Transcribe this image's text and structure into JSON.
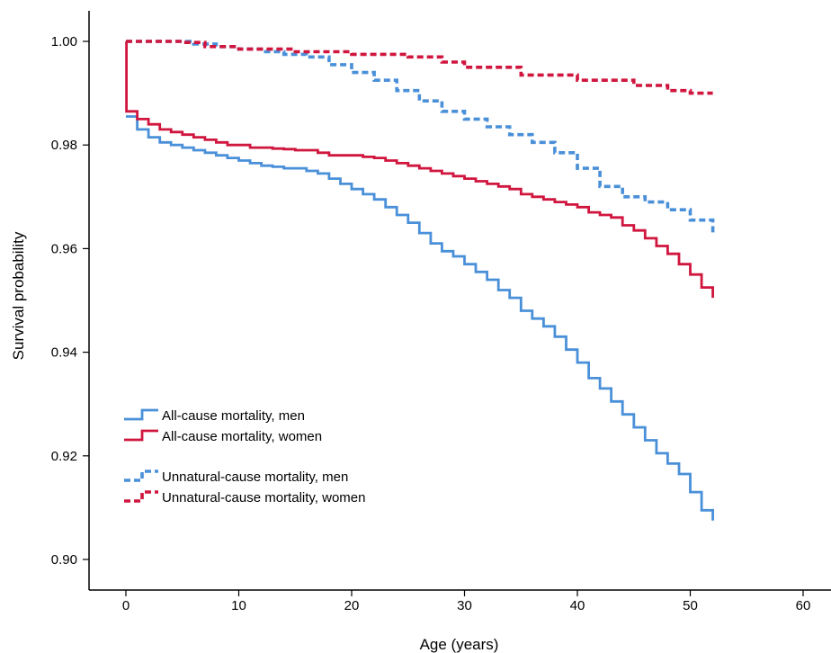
{
  "chart_data": {
    "type": "line",
    "title": "",
    "xlabel": "Age (years)",
    "ylabel": "Survival probability",
    "xlim": [
      -3,
      61
    ],
    "ylim": [
      0.8955,
      1.0055
    ],
    "xticks": [
      0,
      10,
      20,
      30,
      40,
      50,
      60
    ],
    "yticks": [
      0.9,
      0.92,
      0.94,
      0.96,
      0.98,
      1.0
    ],
    "ytick_labels": [
      "0.90",
      "0.92",
      "0.94",
      "0.96",
      "0.98",
      "1.00"
    ],
    "grid": false,
    "legend_position": "lower-left",
    "step": true,
    "series": [
      {
        "name": "All-cause mortality, men",
        "color": "#4a90d9",
        "dash": "solid",
        "x": [
          0,
          1,
          2,
          3,
          4,
          5,
          6,
          7,
          8,
          9,
          10,
          11,
          12,
          13,
          14,
          15,
          16,
          17,
          18,
          19,
          20,
          21,
          22,
          23,
          24,
          25,
          26,
          27,
          28,
          29,
          30,
          31,
          32,
          33,
          34,
          35,
          36,
          37,
          38,
          39,
          40,
          41,
          42,
          43,
          44,
          45,
          46,
          47,
          48,
          49,
          50,
          51,
          52
        ],
        "y": [
          0.9855,
          0.983,
          0.9815,
          0.9805,
          0.98,
          0.9795,
          0.979,
          0.9785,
          0.978,
          0.9775,
          0.977,
          0.9765,
          0.976,
          0.9758,
          0.9755,
          0.9755,
          0.975,
          0.9745,
          0.9735,
          0.9725,
          0.9715,
          0.9705,
          0.9695,
          0.968,
          0.9665,
          0.965,
          0.963,
          0.961,
          0.9595,
          0.9585,
          0.957,
          0.9555,
          0.954,
          0.952,
          0.9505,
          0.948,
          0.9465,
          0.945,
          0.943,
          0.9405,
          0.938,
          0.935,
          0.933,
          0.9305,
          0.928,
          0.9255,
          0.923,
          0.9205,
          0.9185,
          0.9165,
          0.913,
          0.9095,
          0.9075
        ]
      },
      {
        "name": "All-cause mortality, women",
        "color": "#d0163e",
        "dash": "solid",
        "x": [
          0,
          0.05,
          1,
          2,
          3,
          4,
          5,
          6,
          7,
          8,
          9,
          10,
          11,
          12,
          13,
          14,
          15,
          16,
          17,
          18,
          19,
          20,
          21,
          22,
          23,
          24,
          25,
          26,
          27,
          28,
          29,
          30,
          31,
          32,
          33,
          34,
          35,
          36,
          37,
          38,
          39,
          40,
          41,
          42,
          43,
          44,
          45,
          46,
          47,
          48,
          49,
          50,
          51,
          52
        ],
        "y": [
          1.0,
          0.9865,
          0.985,
          0.984,
          0.983,
          0.9825,
          0.982,
          0.9815,
          0.981,
          0.9805,
          0.98,
          0.98,
          0.9795,
          0.9795,
          0.9793,
          0.9792,
          0.979,
          0.979,
          0.9785,
          0.978,
          0.978,
          0.978,
          0.9777,
          0.9775,
          0.977,
          0.9765,
          0.976,
          0.9755,
          0.975,
          0.9745,
          0.974,
          0.9735,
          0.973,
          0.9725,
          0.972,
          0.9715,
          0.9705,
          0.97,
          0.9695,
          0.969,
          0.9685,
          0.968,
          0.967,
          0.9665,
          0.966,
          0.9645,
          0.9635,
          0.962,
          0.9605,
          0.959,
          0.957,
          0.955,
          0.9525,
          0.9505
        ]
      },
      {
        "name": "Unnatural-cause mortality, men",
        "color": "#4a90d9",
        "dash": "dashed",
        "x": [
          0,
          2,
          4,
          5,
          6,
          8,
          10,
          12,
          14,
          16,
          18,
          20,
          22,
          24,
          26,
          28,
          30,
          32,
          34,
          36,
          38,
          40,
          42,
          44,
          46,
          48,
          50,
          52
        ],
        "y": [
          1.0,
          1.0,
          1.0,
          1.0,
          0.9995,
          0.999,
          0.9985,
          0.998,
          0.9975,
          0.997,
          0.9955,
          0.994,
          0.9925,
          0.9905,
          0.9885,
          0.9865,
          0.985,
          0.9835,
          0.982,
          0.9805,
          0.9785,
          0.9755,
          0.972,
          0.97,
          0.969,
          0.9675,
          0.9655,
          0.9625
        ]
      },
      {
        "name": "Unnatural-cause mortality, women",
        "color": "#d0163e",
        "dash": "dashed",
        "x": [
          0,
          5,
          7,
          10,
          15,
          20,
          25,
          28,
          30,
          35,
          40,
          45,
          48,
          50,
          52
        ],
        "y": [
          1.0,
          0.9998,
          0.999,
          0.9985,
          0.998,
          0.9975,
          0.997,
          0.996,
          0.995,
          0.9935,
          0.9925,
          0.9915,
          0.9905,
          0.99,
          0.99
        ]
      }
    ]
  }
}
